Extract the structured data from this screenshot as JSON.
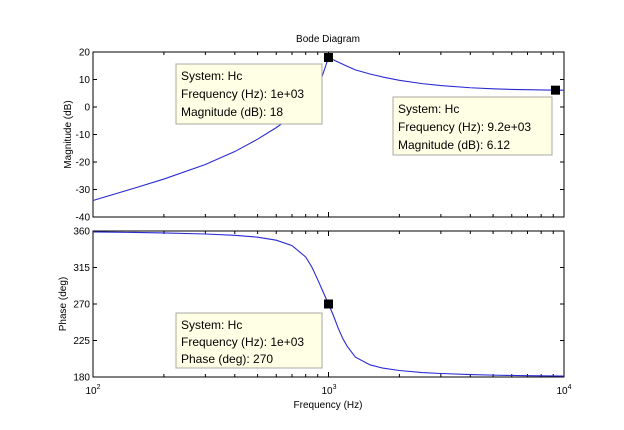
{
  "chart_data": {
    "type": "line",
    "title": "Bode Diagram",
    "xlabel": "Frequency  (Hz)",
    "xscale": "log",
    "xlim": [
      100,
      10000
    ],
    "x_ticks": [
      {
        "base": "10",
        "exp": "2",
        "value": 100
      },
      {
        "base": "10",
        "exp": "3",
        "value": 1000
      },
      {
        "base": "10",
        "exp": "4",
        "value": 10000
      }
    ],
    "curve_color": "#2a2ad4",
    "magnitude": {
      "ylabel": "Magnitude (dB)",
      "ylim": [
        -40,
        20
      ],
      "yticks": [
        "20",
        "10",
        "0",
        "-10",
        "-20",
        "-30",
        "-40"
      ],
      "series": {
        "x": [
          100,
          150,
          200,
          300,
          400,
          500,
          600,
          700,
          800,
          900,
          1000,
          1100,
          1200,
          1300,
          1500,
          1700,
          2000,
          2500,
          3000,
          4000,
          5000,
          6000,
          7000,
          8000,
          9200,
          10000
        ],
        "y": [
          -34,
          -29.5,
          -26.2,
          -20.9,
          -16.2,
          -11.7,
          -7.5,
          -3.5,
          1.0,
          6.4,
          18,
          16.3,
          14.8,
          13.5,
          12.0,
          10.9,
          9.7,
          8.5,
          7.8,
          7.0,
          6.6,
          6.4,
          6.3,
          6.2,
          6.12,
          6.1
        ]
      }
    },
    "phase": {
      "ylabel": "Phase (deg)",
      "ylim": [
        180,
        360
      ],
      "yticks": [
        "360",
        "315",
        "270",
        "225",
        "180"
      ],
      "series": {
        "x": [
          100,
          150,
          200,
          300,
          400,
          500,
          600,
          700,
          800,
          850,
          900,
          950,
          1000,
          1050,
          1100,
          1150,
          1200,
          1300,
          1500,
          1700,
          2000,
          2500,
          3000,
          4000,
          5000,
          7000,
          10000
        ],
        "y": [
          358.8,
          358.2,
          357.6,
          356.3,
          354.7,
          352.4,
          348.7,
          342.0,
          328.0,
          315.5,
          300.0,
          284.5,
          270,
          255.5,
          240.0,
          227.5,
          218.0,
          204.5,
          195.0,
          191.0,
          188.0,
          185.5,
          184.3,
          183.0,
          182.3,
          181.6,
          181.1
        ]
      }
    },
    "datatips": [
      {
        "panel": "magnitude",
        "x": 1000,
        "y": 18,
        "lines": [
          "System: Hc",
          "Frequency (Hz): 1e+03",
          "Magnitude (dB): 18"
        ]
      },
      {
        "panel": "magnitude",
        "x": 9200,
        "y": 6.12,
        "lines": [
          "System: Hc",
          "Frequency (Hz): 9.2e+03",
          "Magnitude (dB): 6.12"
        ]
      },
      {
        "panel": "phase",
        "x": 1000,
        "y": 270,
        "lines": [
          "System: Hc",
          "Frequency (Hz): 1e+03",
          "Phase (deg): 270"
        ]
      }
    ]
  }
}
